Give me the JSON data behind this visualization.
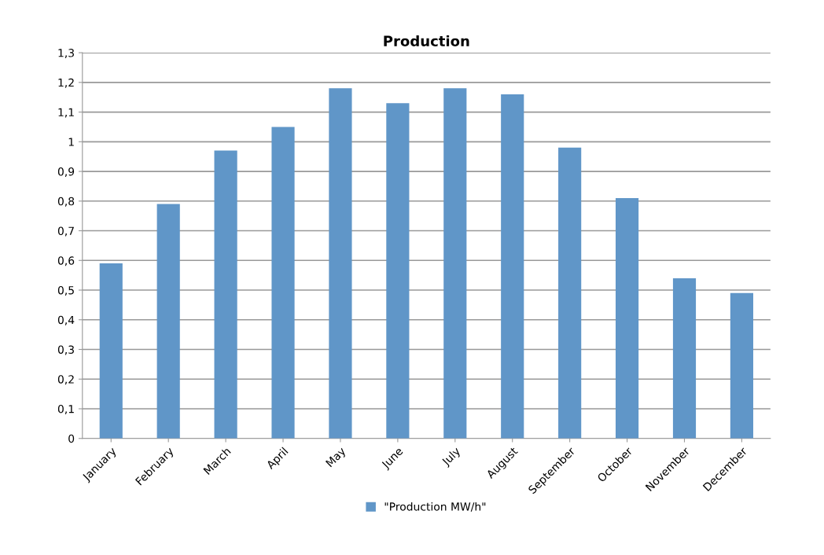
{
  "chart_data": {
    "type": "bar",
    "title": "Production",
    "categories": [
      "January",
      "February",
      "March",
      "April",
      "May",
      "June",
      "July",
      "August",
      "September",
      "October",
      "November",
      "December"
    ],
    "series": [
      {
        "name": "\"Production MW/h\"",
        "color": "#6096c8",
        "values": [
          0.59,
          0.79,
          0.97,
          1.05,
          1.18,
          1.13,
          1.18,
          1.16,
          0.98,
          0.81,
          0.54,
          0.49
        ]
      }
    ],
    "ylim": [
      0,
      1.3
    ],
    "yticks": [
      0,
      {
        "value": 0.1,
        "label": "0,1"
      },
      {
        "value": 0.2,
        "label": "0,2"
      },
      {
        "value": 0.3,
        "label": "0,3"
      },
      {
        "value": 0.4,
        "label": "0,4"
      },
      {
        "value": 0.5,
        "label": "0,5"
      },
      {
        "value": 0.6,
        "label": "0,6"
      },
      {
        "value": 0.7,
        "label": "0,7"
      },
      {
        "value": 0.8,
        "label": "0,8"
      },
      {
        "value": 0.9,
        "label": "0,9"
      },
      1,
      {
        "value": 1.1,
        "label": "1,1"
      },
      {
        "value": 1.2,
        "label": "1,2"
      },
      {
        "value": 1.3,
        "label": "1,3"
      }
    ],
    "grid": "y",
    "legend": "bottom"
  }
}
